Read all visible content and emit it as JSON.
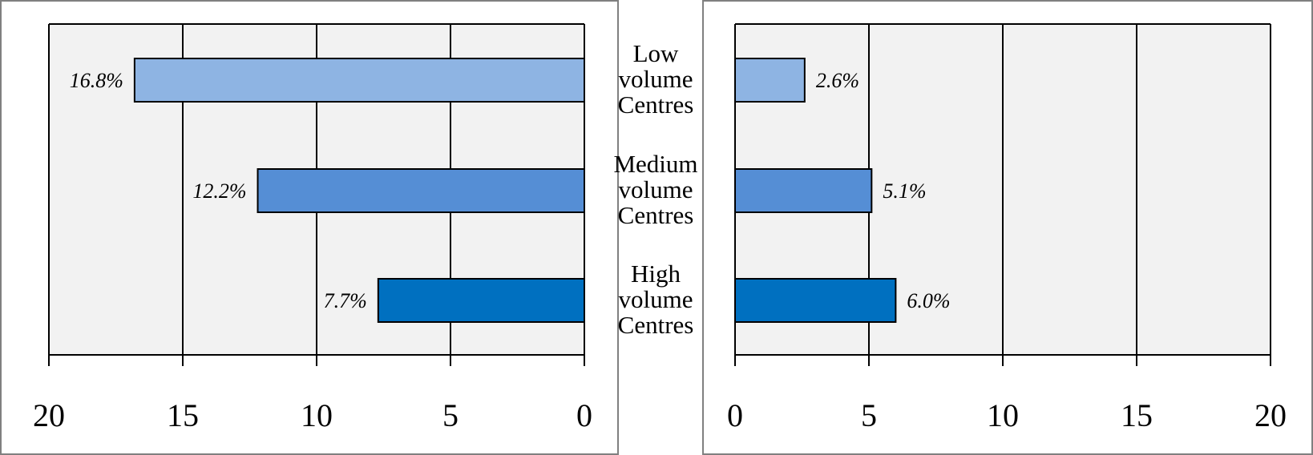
{
  "chart_data": [
    {
      "type": "bar",
      "orientation": "horizontal",
      "direction": "reversed",
      "categories": [
        "Low volume Centres",
        "Medium volume Centres",
        "High volume Centres"
      ],
      "values": [
        16.8,
        12.2,
        7.7
      ],
      "data_labels": [
        "16.8%",
        "12.2%",
        "7.7%"
      ],
      "xlim": [
        0,
        20
      ],
      "ticks": [
        "20",
        "15",
        "10",
        "5",
        "0"
      ],
      "grid": true,
      "colors": [
        "#8eb4e3",
        "#558ed5",
        "#0070c0"
      ]
    },
    {
      "type": "bar",
      "orientation": "horizontal",
      "direction": "normal",
      "categories": [
        "Low volume Centres",
        "Medium volume Centres",
        "High volume Centres"
      ],
      "values": [
        2.6,
        5.1,
        6.0
      ],
      "data_labels": [
        "2.6%",
        "5.1%",
        "6.0%"
      ],
      "xlim": [
        0,
        20
      ],
      "ticks": [
        "0",
        "5",
        "10",
        "15",
        "20"
      ],
      "grid": true,
      "colors": [
        "#8eb4e3",
        "#558ed5",
        "#0070c0"
      ]
    }
  ],
  "category_labels": [
    [
      "Low",
      "volume",
      "Centres"
    ],
    [
      "Medium",
      "volume",
      "Centres"
    ],
    [
      "High",
      "volume",
      "Centres"
    ]
  ],
  "style": {
    "plot_bg": "#f2f2f2",
    "frame": "#808080",
    "axis": "#000000"
  }
}
